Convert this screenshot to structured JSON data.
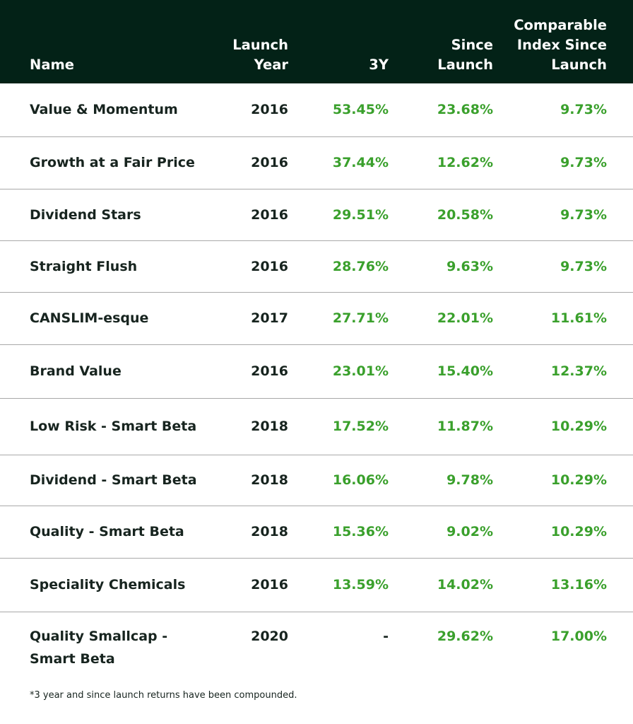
{
  "header": {
    "name": "Name",
    "launch_year_line1": "Launch",
    "launch_year_line2": "Year",
    "three_year": "3Y",
    "since_launch_line1": "Since",
    "since_launch_line2": "Launch",
    "comparable_line1": "Comparable",
    "comparable_line2": "Index Since",
    "comparable_line3": "Launch"
  },
  "rows": [
    {
      "name": "Value & Momentum",
      "year": "2016",
      "three_year": "53.45%",
      "since_launch": "23.68%",
      "comparable": "9.73%"
    },
    {
      "name": "Growth at a Fair Price",
      "year": "2016",
      "three_year": "37.44%",
      "since_launch": "12.62%",
      "comparable": "9.73%"
    },
    {
      "name": "Dividend Stars",
      "year": "2016",
      "three_year": "29.51%",
      "since_launch": "20.58%",
      "comparable": "9.73%"
    },
    {
      "name": "Straight Flush",
      "year": "2016",
      "three_year": "28.76%",
      "since_launch": "9.63%",
      "comparable": "9.73%"
    },
    {
      "name": "CANSLIM-esque",
      "year": "2017",
      "three_year": "27.71%",
      "since_launch": "22.01%",
      "comparable": "11.61%"
    },
    {
      "name": "Brand Value",
      "year": "2016",
      "three_year": "23.01%",
      "since_launch": "15.40%",
      "comparable": "12.37%"
    },
    {
      "name": "Low Risk - Smart Beta",
      "year": "2018",
      "three_year": "17.52%",
      "since_launch": "11.87%",
      "comparable": "10.29%"
    },
    {
      "name": "Dividend - Smart Beta",
      "year": "2018",
      "three_year": "16.06%",
      "since_launch": "9.78%",
      "comparable": "10.29%"
    },
    {
      "name": "Quality - Smart Beta",
      "year": "2018",
      "three_year": "15.36%",
      "since_launch": "9.02%",
      "comparable": "10.29%"
    },
    {
      "name": "Speciality Chemicals",
      "year": "2016",
      "three_year": "13.59%",
      "since_launch": "14.02%",
      "comparable": "13.16%"
    },
    {
      "name_line1": "Quality Smallcap -",
      "name_line2": "Smart Beta",
      "year": "2020",
      "three_year": "-",
      "since_launch": "29.62%",
      "comparable": "17.00%"
    }
  ],
  "footnote": "*3 year and since launch returns have been compounded.",
  "colors": {
    "header_bg": "#032217",
    "positive_value": "#3aa02c",
    "text": "#17241f",
    "row_divider": "#a9a9a9"
  }
}
